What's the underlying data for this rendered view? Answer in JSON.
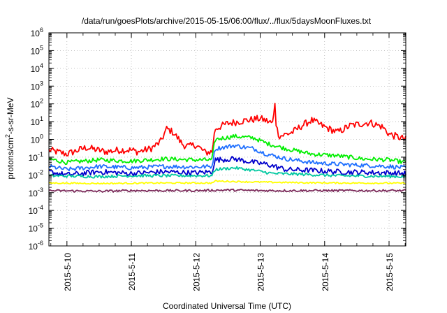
{
  "chart_data": {
    "type": "line",
    "title": "/data/run/goesPlots/archive/2015-05-15/06:00/flux/../flux/5daysMoonFluxes.txt",
    "xlabel": "Coordinated Universal Time (UTC)",
    "ylabel_parts": [
      "protons/cm",
      "2",
      "-s-sr-MeV"
    ],
    "y_scale": "log",
    "ylim_exponent": [
      -6,
      6
    ],
    "y_tick_labels": [
      {
        "base": "10",
        "exp": "-6"
      },
      {
        "base": "10",
        "exp": "-5"
      },
      {
        "base": "10",
        "exp": "-4"
      },
      {
        "base": "10",
        "exp": "-3"
      },
      {
        "base": "10",
        "exp": "-2"
      },
      {
        "base": "10",
        "exp": "-1"
      },
      {
        "base": "10",
        "exp": "0"
      },
      {
        "base": "10",
        "exp": "1"
      },
      {
        "base": "10",
        "exp": "2"
      },
      {
        "base": "10",
        "exp": "3"
      },
      {
        "base": "10",
        "exp": "4"
      },
      {
        "base": "10",
        "exp": "5"
      },
      {
        "base": "10",
        "exp": "6"
      }
    ],
    "x_ticks": [
      "2015-5-10",
      "2015-5-11",
      "2015-5-12",
      "2015-5-13",
      "2015-5-14",
      "2015-5-15"
    ],
    "xlim_days": [
      9.72,
      15.26
    ],
    "grid": true,
    "series": [
      {
        "color": "#ff0000",
        "noise": 0.2,
        "points": [
          [
            9.72,
            0.25
          ],
          [
            10.0,
            0.15
          ],
          [
            10.3,
            0.35
          ],
          [
            10.6,
            0.2
          ],
          [
            10.8,
            0.25
          ],
          [
            11.0,
            0.25
          ],
          [
            11.1,
            0.2
          ],
          [
            11.3,
            0.3
          ],
          [
            11.45,
            0.7
          ],
          [
            11.55,
            4.0
          ],
          [
            11.65,
            2.5
          ],
          [
            11.8,
            0.5
          ],
          [
            11.9,
            0.4
          ],
          [
            12.0,
            0.5
          ],
          [
            12.15,
            0.18
          ],
          [
            12.25,
            0.2
          ],
          [
            12.3,
            4.0
          ],
          [
            12.5,
            8.0
          ],
          [
            12.8,
            12.0
          ],
          [
            13.0,
            15.0
          ],
          [
            13.2,
            8.0
          ],
          [
            13.23,
            150.0
          ],
          [
            13.25,
            5.0
          ],
          [
            13.3,
            1.5
          ],
          [
            13.5,
            2.5
          ],
          [
            13.65,
            6.0
          ],
          [
            13.8,
            12.0
          ],
          [
            14.0,
            5.0
          ],
          [
            14.2,
            2.5
          ],
          [
            14.4,
            6.0
          ],
          [
            14.7,
            9.0
          ],
          [
            14.9,
            5.0
          ],
          [
            15.0,
            2.0
          ],
          [
            15.1,
            1.5
          ],
          [
            15.26,
            1.0
          ]
        ]
      },
      {
        "color": "#00ee00",
        "noise": 0.12,
        "points": [
          [
            9.72,
            0.08
          ],
          [
            10.0,
            0.05
          ],
          [
            10.5,
            0.07
          ],
          [
            11.0,
            0.06
          ],
          [
            11.5,
            0.08
          ],
          [
            12.0,
            0.07
          ],
          [
            12.25,
            0.07
          ],
          [
            12.3,
            1.0
          ],
          [
            12.6,
            1.5
          ],
          [
            12.9,
            1.2
          ],
          [
            13.1,
            0.6
          ],
          [
            13.4,
            0.3
          ],
          [
            13.8,
            0.15
          ],
          [
            14.2,
            0.12
          ],
          [
            14.6,
            0.08
          ],
          [
            15.0,
            0.07
          ],
          [
            15.26,
            0.05
          ]
        ]
      },
      {
        "color": "#1e6fff",
        "noise": 0.12,
        "points": [
          [
            9.72,
            0.03
          ],
          [
            10.0,
            0.02
          ],
          [
            10.5,
            0.03
          ],
          [
            11.0,
            0.025
          ],
          [
            11.5,
            0.03
          ],
          [
            12.0,
            0.028
          ],
          [
            12.25,
            0.03
          ],
          [
            12.3,
            0.3
          ],
          [
            12.6,
            0.45
          ],
          [
            12.9,
            0.3
          ],
          [
            13.1,
            0.15
          ],
          [
            13.4,
            0.08
          ],
          [
            13.8,
            0.05
          ],
          [
            14.2,
            0.04
          ],
          [
            14.6,
            0.035
          ],
          [
            15.0,
            0.03
          ],
          [
            15.26,
            0.025
          ]
        ]
      },
      {
        "color": "#0000cc",
        "noise": 0.15,
        "points": [
          [
            9.72,
            0.015
          ],
          [
            10.0,
            0.01
          ],
          [
            10.5,
            0.015
          ],
          [
            11.0,
            0.012
          ],
          [
            11.5,
            0.015
          ],
          [
            12.0,
            0.013
          ],
          [
            12.25,
            0.015
          ],
          [
            12.3,
            0.07
          ],
          [
            12.6,
            0.08
          ],
          [
            12.9,
            0.05
          ],
          [
            13.1,
            0.04
          ],
          [
            13.4,
            0.02
          ],
          [
            13.8,
            0.018
          ],
          [
            14.2,
            0.015
          ],
          [
            14.6,
            0.014
          ],
          [
            15.0,
            0.013
          ],
          [
            15.26,
            0.012
          ]
        ]
      },
      {
        "color": "#00c8a0",
        "noise": 0.08,
        "points": [
          [
            9.72,
            0.009
          ],
          [
            10.5,
            0.008
          ],
          [
            11.0,
            0.009
          ],
          [
            11.5,
            0.009
          ],
          [
            12.0,
            0.009
          ],
          [
            12.25,
            0.009
          ],
          [
            12.3,
            0.02
          ],
          [
            12.6,
            0.025
          ],
          [
            12.9,
            0.018
          ],
          [
            13.2,
            0.012
          ],
          [
            13.6,
            0.011
          ],
          [
            14.2,
            0.009
          ],
          [
            15.26,
            0.008
          ]
        ]
      },
      {
        "color": "#ffff00",
        "noise": 0.04,
        "points": [
          [
            9.72,
            0.0035
          ],
          [
            10.5,
            0.0033
          ],
          [
            11.0,
            0.0034
          ],
          [
            11.5,
            0.0035
          ],
          [
            12.25,
            0.0035
          ],
          [
            12.3,
            0.0045
          ],
          [
            12.9,
            0.004
          ],
          [
            13.5,
            0.0037
          ],
          [
            14.2,
            0.0035
          ],
          [
            15.26,
            0.0034
          ]
        ]
      },
      {
        "color": "#7b2a5a",
        "noise": 0.06,
        "points": [
          [
            9.72,
            0.0013
          ],
          [
            10.5,
            0.0012
          ],
          [
            11.0,
            0.0013
          ],
          [
            11.5,
            0.0013
          ],
          [
            12.0,
            0.0013
          ],
          [
            12.5,
            0.0014
          ],
          [
            13.0,
            0.0013
          ],
          [
            14.0,
            0.0013
          ],
          [
            15.26,
            0.0013
          ]
        ]
      }
    ]
  }
}
